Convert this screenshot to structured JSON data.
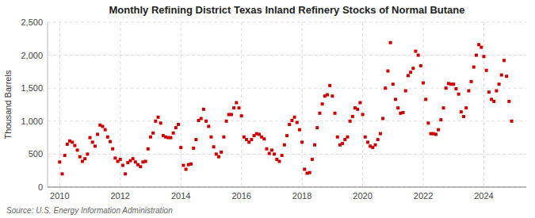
{
  "chart_data": {
    "type": "scatter",
    "title": "Monthly Refining District Texas Inland Refinery Stocks of Normal Butane",
    "ylabel": "Thousand Barrels",
    "annotations": [
      "Source: U.S. Energy Information Administration"
    ],
    "color": "#CC0000",
    "marker": "square",
    "grid": true,
    "xlim": [
      2009.6,
      2025.4
    ],
    "ylim": [
      0,
      2500
    ],
    "xticks": [
      2010,
      2012,
      2014,
      2016,
      2018,
      2020,
      2022,
      2024
    ],
    "yticks": [
      0,
      500,
      {
        "value": 1000,
        "label": "1,000"
      },
      {
        "value": 1500,
        "label": "1,500"
      },
      {
        "value": 2000,
        "label": "2,000"
      },
      {
        "value": 2500,
        "label": "2,500"
      }
    ],
    "x": [
      2010.0,
      2010.083,
      2010.167,
      2010.25,
      2010.333,
      2010.417,
      2010.5,
      2010.583,
      2010.667,
      2010.75,
      2010.833,
      2010.917,
      2011.0,
      2011.083,
      2011.167,
      2011.25,
      2011.333,
      2011.417,
      2011.5,
      2011.583,
      2011.667,
      2011.75,
      2011.833,
      2011.917,
      2012.0,
      2012.083,
      2012.167,
      2012.25,
      2012.333,
      2012.417,
      2012.5,
      2012.583,
      2012.667,
      2012.75,
      2012.833,
      2012.917,
      2013.0,
      2013.083,
      2013.167,
      2013.25,
      2013.333,
      2013.417,
      2013.5,
      2013.583,
      2013.667,
      2013.75,
      2013.833,
      2013.917,
      2014.0,
      2014.083,
      2014.167,
      2014.25,
      2014.333,
      2014.417,
      2014.5,
      2014.583,
      2014.667,
      2014.75,
      2014.833,
      2014.917,
      2015.0,
      2015.083,
      2015.167,
      2015.25,
      2015.333,
      2015.417,
      2015.5,
      2015.583,
      2015.667,
      2015.75,
      2015.833,
      2015.917,
      2016.0,
      2016.083,
      2016.167,
      2016.25,
      2016.333,
      2016.417,
      2016.5,
      2016.583,
      2016.667,
      2016.75,
      2016.833,
      2016.917,
      2017.0,
      2017.083,
      2017.167,
      2017.25,
      2017.333,
      2017.417,
      2017.5,
      2017.583,
      2017.667,
      2017.75,
      2017.833,
      2017.917,
      2018.0,
      2018.083,
      2018.167,
      2018.25,
      2018.333,
      2018.417,
      2018.5,
      2018.583,
      2018.667,
      2018.75,
      2018.833,
      2018.917,
      2019.0,
      2019.083,
      2019.167,
      2019.25,
      2019.333,
      2019.417,
      2019.5,
      2019.583,
      2019.667,
      2019.75,
      2019.833,
      2019.917,
      2020.0,
      2020.083,
      2020.167,
      2020.25,
      2020.333,
      2020.417,
      2020.5,
      2020.583,
      2020.667,
      2020.75,
      2020.833,
      2020.917,
      2021.0,
      2021.083,
      2021.167,
      2021.25,
      2021.333,
      2021.417,
      2021.5,
      2021.583,
      2021.667,
      2021.75,
      2021.833,
      2021.917,
      2022.0,
      2022.083,
      2022.167,
      2022.25,
      2022.333,
      2022.417,
      2022.5,
      2022.583,
      2022.667,
      2022.75,
      2022.833,
      2022.917,
      2023.0,
      2023.083,
      2023.167,
      2023.25,
      2023.333,
      2023.417,
      2023.5,
      2023.583,
      2023.667,
      2023.75,
      2023.833,
      2023.917,
      2024.0,
      2024.083,
      2024.167,
      2024.25,
      2024.333,
      2024.417,
      2024.5,
      2024.583,
      2024.667,
      2024.75,
      2024.833,
      2024.917
    ],
    "values": [
      380,
      200,
      480,
      650,
      700,
      680,
      630,
      560,
      460,
      390,
      430,
      500,
      750,
      680,
      620,
      800,
      940,
      920,
      870,
      760,
      690,
      580,
      440,
      390,
      420,
      330,
      200,
      370,
      400,
      430,
      380,
      340,
      310,
      380,
      390,
      580,
      760,
      820,
      1000,
      1060,
      970,
      780,
      760,
      750,
      750,
      820,
      900,
      950,
      600,
      330,
      270,
      340,
      350,
      590,
      720,
      1010,
      1040,
      1180,
      1000,
      920,
      760,
      610,
      500,
      460,
      530,
      760,
      1000,
      1100,
      1100,
      1200,
      1280,
      1200,
      1080,
      760,
      720,
      680,
      720,
      780,
      810,
      800,
      760,
      730,
      580,
      510,
      560,
      500,
      420,
      390,
      480,
      640,
      780,
      950,
      1010,
      1060,
      980,
      870,
      680,
      270,
      210,
      220,
      420,
      640,
      900,
      1120,
      1260,
      1380,
      1400,
      1540,
      1380,
      1120,
      760,
      640,
      660,
      720,
      760,
      1000,
      1070,
      1200,
      1180,
      1280,
      1100,
      760,
      680,
      620,
      600,
      640,
      720,
      810,
      1040,
      1500,
      1760,
      2190,
      1560,
      1330,
      1200,
      1120,
      1130,
      1460,
      1690,
      1740,
      1800,
      2060,
      2000,
      1840,
      1580,
      1330,
      970,
      810,
      810,
      800,
      870,
      1020,
      1200,
      1500,
      1570,
      1560,
      1560,
      1490,
      1410,
      1140,
      1070,
      1200,
      1460,
      1600,
      1820,
      2000,
      2160,
      2120,
      1980,
      1770,
      1440,
      1330,
      1300,
      1460,
      1560,
      1700,
      1920,
      1680,
      1300,
      1000
    ]
  }
}
